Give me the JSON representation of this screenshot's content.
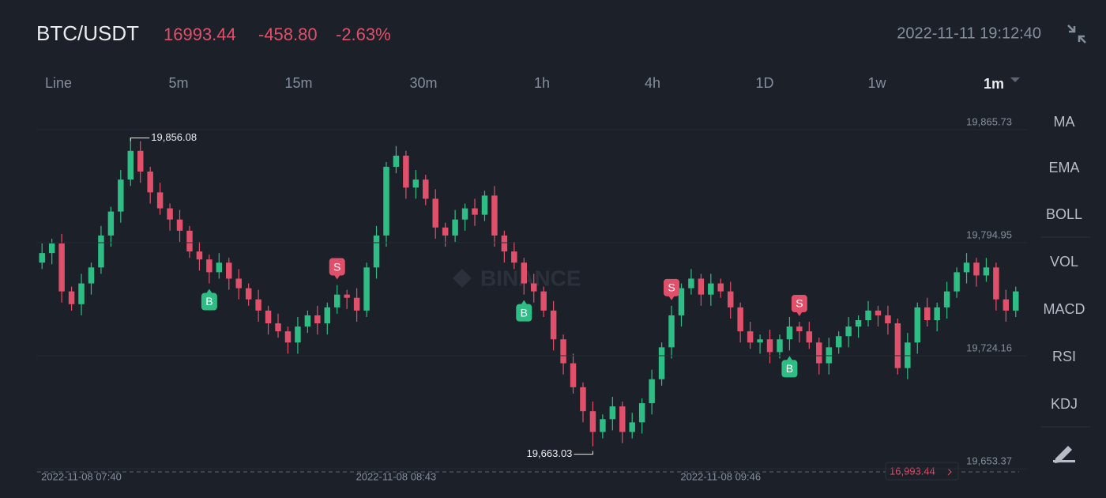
{
  "header": {
    "symbol": "BTC/USDT",
    "price": "16993.44",
    "change": "-458.80",
    "change_percent": "-2.63%",
    "datetime": "2022-11-11 19:12:40"
  },
  "intervals": [
    "Line",
    "5m",
    "15m",
    "30m",
    "1h",
    "4h",
    "1D",
    "1w",
    "1m"
  ],
  "indicators": [
    "MA",
    "EMA",
    "BOLL",
    "VOL",
    "MACD",
    "RSI",
    "KDJ"
  ],
  "watermark": "BINANCE",
  "chart_data": {
    "type": "candlestick",
    "categories": [
      null,
      null,
      null,
      null,
      "2022-11-08 07:40",
      null,
      null,
      null,
      null,
      null,
      null,
      null,
      null,
      null,
      null,
      null,
      null,
      null,
      null,
      null,
      null,
      null,
      null,
      null,
      null,
      null,
      null,
      null,
      null,
      null,
      null,
      null,
      null,
      null,
      null,
      null,
      "2022-11-08 08:43",
      null,
      null,
      null,
      null,
      null,
      null,
      null,
      null,
      null,
      null,
      null,
      null,
      null,
      null,
      null,
      null,
      null,
      null,
      null,
      null,
      null,
      null,
      null,
      null,
      null,
      null,
      null,
      null,
      null,
      null,
      null,
      null,
      "2022-11-08 09:46",
      null,
      null,
      null,
      null,
      null,
      null,
      null,
      null,
      null,
      null,
      null,
      null,
      null,
      null,
      null,
      null,
      null,
      null,
      null,
      null,
      null,
      null,
      null,
      null,
      null,
      null,
      null,
      null,
      null,
      null
    ],
    "open": [
      19778,
      19784,
      19790,
      19760,
      19752,
      19765,
      19775,
      19795,
      19810,
      19830,
      19848,
      19835,
      19822,
      19812,
      19805,
      19798,
      19785,
      19780,
      19772,
      19778,
      19768,
      19762,
      19755,
      19748,
      19740,
      19735,
      19728,
      19738,
      19745,
      19740,
      19750,
      19758,
      19756,
      19748,
      19775,
      19795,
      19838,
      19845,
      19825,
      19830,
      19818,
      19800,
      19795,
      19805,
      19812,
      19808,
      19820,
      19795,
      19785,
      19778,
      19765,
      19760,
      19748,
      19730,
      19715,
      19700,
      19685,
      19672,
      19680,
      19688,
      19672,
      19678,
      19690,
      19705,
      19725,
      19745,
      19762,
      19768,
      19758,
      19765,
      19760,
      19750,
      19735,
      19728,
      19730,
      19722,
      19730,
      19738,
      19735,
      19728,
      19715,
      19725,
      19732,
      19738,
      19742,
      19748,
      19745,
      19740,
      19712,
      19728,
      19750,
      19742,
      19750,
      19760,
      19772,
      19778,
      19770,
      19775,
      19755,
      19748
    ],
    "high": [
      19790,
      19793,
      19796,
      19763,
      19771,
      19778,
      19801,
      19813,
      19836,
      19856.08,
      19854,
      19838,
      19828,
      19815,
      19811,
      19801,
      19791,
      19783,
      19784,
      19781,
      19774,
      19765,
      19761,
      19751,
      19746,
      19738,
      19744,
      19748,
      19751,
      19753,
      19764,
      19761,
      19762,
      19778,
      19801,
      19841,
      19851,
      19848,
      19836,
      19833,
      19824,
      19803,
      19811,
      19815,
      19818,
      19823,
      19826,
      19798,
      19791,
      19781,
      19771,
      19763,
      19754,
      19733,
      19721,
      19703,
      19691,
      19683,
      19694,
      19691,
      19684,
      19693,
      19711,
      19728,
      19751,
      19765,
      19774,
      19771,
      19771,
      19768,
      19766,
      19753,
      19741,
      19733,
      19736,
      19733,
      19744,
      19741,
      19741,
      19731,
      19731,
      19735,
      19744,
      19745,
      19754,
      19751,
      19751,
      19743,
      19734,
      19753,
      19756,
      19753,
      19766,
      19775,
      19784,
      19781,
      19781,
      19778,
      19761,
      19763
    ],
    "low": [
      19774,
      19777,
      19753,
      19748,
      19745,
      19758,
      19771,
      19788,
      19803,
      19826,
      19828,
      19815,
      19808,
      19798,
      19791,
      19781,
      19773,
      19765,
      19768,
      19761,
      19755,
      19751,
      19741,
      19733,
      19731,
      19721,
      19721,
      19734,
      19733,
      19733,
      19746,
      19749,
      19741,
      19744,
      19768,
      19788,
      19834,
      19818,
      19818,
      19814,
      19793,
      19788,
      19791,
      19798,
      19801,
      19804,
      19788,
      19778,
      19774,
      19758,
      19753,
      19744,
      19723,
      19708,
      19696,
      19678,
      19663.03,
      19668,
      19673,
      19665,
      19668,
      19671,
      19683,
      19701,
      19718,
      19738,
      19758,
      19751,
      19751,
      19756,
      19743,
      19728,
      19724,
      19721,
      19715,
      19718,
      19723,
      19728,
      19724,
      19708,
      19708,
      19721,
      19725,
      19731,
      19738,
      19738,
      19733,
      19708,
      19705,
      19721,
      19738,
      19735,
      19743,
      19756,
      19765,
      19763,
      19766,
      19748,
      19741,
      19744
    ],
    "close": [
      19784,
      19790,
      19760,
      19752,
      19765,
      19775,
      19795,
      19810,
      19830,
      19848,
      19835,
      19822,
      19812,
      19805,
      19798,
      19785,
      19780,
      19772,
      19778,
      19768,
      19762,
      19755,
      19748,
      19740,
      19735,
      19728,
      19738,
      19745,
      19740,
      19750,
      19758,
      19756,
      19748,
      19775,
      19795,
      19838,
      19845,
      19825,
      19830,
      19818,
      19800,
      19795,
      19805,
      19812,
      19808,
      19820,
      19795,
      19785,
      19778,
      19765,
      19760,
      19748,
      19730,
      19715,
      19700,
      19685,
      19672,
      19680,
      19688,
      19672,
      19678,
      19690,
      19705,
      19725,
      19745,
      19762,
      19768,
      19758,
      19765,
      19760,
      19750,
      19735,
      19728,
      19730,
      19722,
      19730,
      19738,
      19735,
      19728,
      19715,
      19725,
      19732,
      19738,
      19742,
      19748,
      19745,
      19740,
      19712,
      19728,
      19750,
      19742,
      19750,
      19760,
      19772,
      19778,
      19770,
      19775,
      19755,
      19748,
      19760
    ],
    "markers": [
      null,
      null,
      null,
      null,
      null,
      null,
      null,
      null,
      null,
      null,
      null,
      null,
      null,
      null,
      null,
      null,
      null,
      "B",
      null,
      null,
      null,
      null,
      null,
      null,
      null,
      null,
      null,
      null,
      null,
      null,
      "S",
      null,
      null,
      null,
      null,
      null,
      null,
      null,
      null,
      null,
      null,
      null,
      null,
      null,
      null,
      null,
      null,
      null,
      null,
      "B",
      null,
      null,
      null,
      null,
      null,
      null,
      null,
      null,
      null,
      null,
      null,
      null,
      null,
      null,
      "S",
      null,
      null,
      null,
      null,
      null,
      null,
      null,
      null,
      null,
      null,
      null,
      "B",
      "S",
      null,
      null,
      null,
      null,
      null,
      null,
      null,
      null,
      null,
      null,
      null,
      null,
      null,
      null,
      null,
      null,
      null,
      null,
      null,
      null,
      null,
      null
    ],
    "up_color": "#2ebd85",
    "down_color": "#e0506a",
    "ylim": [
      19645.5,
      19878.1
    ],
    "yticks": [
      {
        "value": 19865.73,
        "label": "19,865.73"
      },
      {
        "value": 19794.95,
        "label": "19,794.95"
      },
      {
        "value": 19724.16,
        "label": "19,724.16"
      },
      {
        "value": 19653.37,
        "label": "19,653.37"
      }
    ],
    "annotations": [
      {
        "value": 19856.08,
        "label": "19,856.08"
      },
      {
        "value": 19663.03,
        "label": "19,663.03"
      }
    ],
    "last_price_label": "16,993.44",
    "grid": true
  }
}
